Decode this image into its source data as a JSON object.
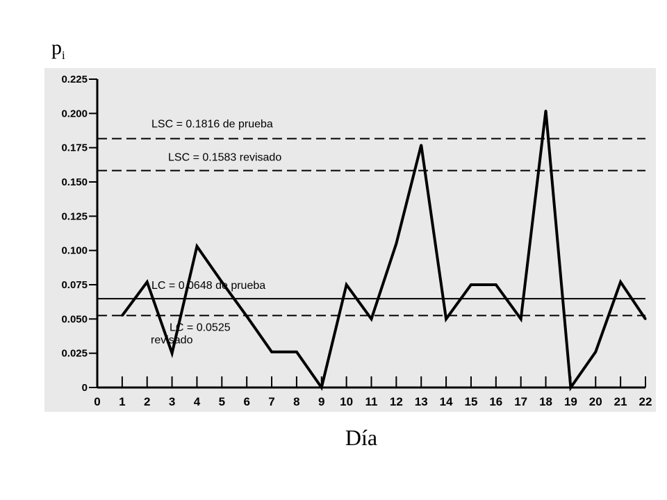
{
  "labels": {
    "ylabel_base": "p",
    "ylabel_sub": "i",
    "xlabel": "Día"
  },
  "chart_data": {
    "type": "line",
    "x": [
      1,
      2,
      3,
      4,
      5,
      6,
      7,
      8,
      9,
      10,
      11,
      12,
      13,
      14,
      15,
      16,
      17,
      18,
      19,
      20,
      21,
      22
    ],
    "series": [
      {
        "values": [
          0.0525,
          0.077,
          0.025,
          0.103,
          0.077,
          0.052,
          0.026,
          0.026,
          0.0,
          0.075,
          0.05,
          0.105,
          0.177,
          0.05,
          0.075,
          0.075,
          0.05,
          0.202,
          0.0,
          0.026,
          0.077,
          0.05
        ]
      }
    ],
    "xlim": [
      0,
      22
    ],
    "ylim": [
      0,
      0.225
    ],
    "xticks": [
      "0",
      "1",
      "2",
      "3",
      "4",
      "5",
      "6",
      "7",
      "8",
      "9",
      "10",
      "11",
      "12",
      "13",
      "14",
      "15",
      "16",
      "17",
      "18",
      "19",
      "20",
      "21",
      "22"
    ],
    "yticks": [
      "0",
      "0.025",
      "0.050",
      "0.075",
      "0.100",
      "0.125",
      "0.150",
      "0.175",
      "0.200",
      "0.225"
    ],
    "reference_lines": [
      {
        "value": 0.1816,
        "style": "dashed",
        "label": "LSC = 0.1816 de prueba"
      },
      {
        "value": 0.1583,
        "style": "dashed",
        "label": "LSC = 0.1583 revisado"
      },
      {
        "value": 0.0648,
        "style": "solid",
        "label": "LC = 0.0648 de prueba"
      },
      {
        "value": 0.0525,
        "style": "dashed",
        "label": "LC = 0.0525",
        "label2": "revisado"
      }
    ],
    "grid": false
  }
}
